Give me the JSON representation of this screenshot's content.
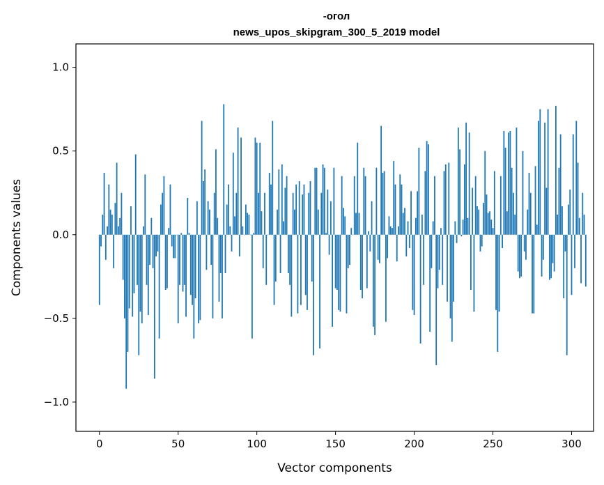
{
  "chart_data": {
    "type": "bar",
    "title_line1": "-огол",
    "title_line2": "news_upos_skipgram_300_5_2019 model",
    "xlabel": "Vector components",
    "ylabel": "Components values",
    "xlim": [
      -14.95,
      313.95
    ],
    "ylim": [
      -1.175,
      1.14
    ],
    "xticks": [
      0,
      50,
      100,
      150,
      200,
      250,
      300
    ],
    "xtick_labels": [
      "0",
      "50",
      "100",
      "150",
      "200",
      "250",
      "300"
    ],
    "yticks": [
      1.0,
      0.5,
      0.0,
      -0.5,
      -1.0
    ],
    "ytick_labels": [
      "1.0",
      "0.5",
      "0.0",
      "−0.5",
      "−1.0"
    ],
    "bar_color": "#1f77b4",
    "values": [
      -0.42,
      -0.07,
      0.12,
      0.37,
      -0.15,
      0.05,
      0.3,
      0.15,
      0.12,
      -0.2,
      0.19,
      0.43,
      0.05,
      0.1,
      0.25,
      -0.27,
      -0.5,
      -0.92,
      -0.7,
      -0.44,
      0.17,
      -0.49,
      -0.35,
      0.48,
      -0.3,
      -0.72,
      -0.46,
      -0.53,
      0.05,
      0.36,
      -0.3,
      -0.48,
      -0.18,
      0.1,
      -0.2,
      -0.86,
      -0.13,
      -0.1,
      -0.62,
      0.18,
      0.25,
      0.35,
      -0.33,
      -0.32,
      0.04,
      0.3,
      -0.07,
      -0.14,
      -0.14,
      0.0,
      -0.53,
      -0.3,
      0.01,
      -0.34,
      -0.3,
      -0.49,
      0.22,
      0.01,
      -0.36,
      -0.42,
      -0.62,
      -0.38,
      0.2,
      -0.53,
      -0.51,
      0.68,
      0.32,
      0.39,
      -0.21,
      0.2,
      0.15,
      -0.18,
      -0.5,
      0.25,
      0.51,
      0.1,
      -0.4,
      -0.23,
      -0.5,
      0.78,
      -0.23,
      0.18,
      0.3,
      0.05,
      -0.1,
      0.49,
      0.11,
      0.25,
      0.64,
      -0.13,
      0.58,
      0.05,
      0.0,
      0.18,
      0.13,
      0.12,
      0.0,
      -0.62,
      0.01,
      0.58,
      0.55,
      0.25,
      0.55,
      0.14,
      -0.2,
      0.25,
      -0.3,
      0.0,
      0.37,
      0.3,
      0.68,
      -0.42,
      -0.28,
      0.15,
      0.39,
      -0.23,
      0.42,
      0.08,
      0.28,
      0.35,
      -0.23,
      -0.3,
      -0.49,
      0.25,
      0.15,
      0.3,
      -0.47,
      0.32,
      -0.42,
      0.24,
      0.3,
      -0.36,
      -0.45,
      0.25,
      0.32,
      -0.28,
      -0.72,
      0.4,
      0.4,
      0.15,
      -0.68,
      0.25,
      0.42,
      0.4,
      0.01,
      0.27,
      -0.12,
      0.2,
      -0.55,
      0.4,
      -0.32,
      -0.33,
      -0.45,
      -0.46,
      0.35,
      0.16,
      0.11,
      -0.47,
      -0.2,
      -0.18,
      0.04,
      0.0,
      0.35,
      0.13,
      0.55,
      0.13,
      -0.33,
      -0.38,
      0.4,
      0.35,
      -0.32,
      0.02,
      -0.1,
      0.2,
      -0.55,
      -0.6,
      0.4,
      -0.15,
      -0.17,
      0.65,
      0.37,
      0.38,
      -0.52,
      -0.14,
      0.11,
      0.05,
      0.04,
      0.44,
      0.3,
      -0.16,
      0.05,
      0.36,
      0.3,
      0.13,
      0.16,
      -0.13,
      0.08,
      -0.08,
      0.26,
      -0.45,
      -0.48,
      0.1,
      0.26,
      0.52,
      -0.65,
      0.12,
      -0.3,
      0.38,
      0.56,
      0.54,
      -0.58,
      -0.2,
      0.08,
      0.35,
      -0.78,
      -0.32,
      -0.21,
      0.04,
      -0.3,
      0.38,
      0.42,
      -0.4,
      0.43,
      -0.5,
      -0.64,
      -0.4,
      0.08,
      -0.05,
      0.64,
      0.51,
      -0.01,
      0.09,
      0.42,
      0.67,
      0.1,
      0.61,
      -0.33,
      0.28,
      -0.46,
      0.35,
      0.17,
      0.15,
      -0.1,
      -0.07,
      0.19,
      0.5,
      0.24,
      0.13,
      0.14,
      0.09,
      0.04,
      0.38,
      -0.45,
      -0.7,
      -0.46,
      0.35,
      -0.08,
      0.62,
      0.52,
      0.14,
      0.61,
      0.62,
      0.4,
      0.25,
      0.12,
      0.64,
      -0.22,
      -0.26,
      -0.25,
      0.5,
      -0.1,
      -0.15,
      0.15,
      0.37,
      0.25,
      -0.47,
      -0.47,
      0.41,
      0.06,
      0.68,
      0.75,
      -0.25,
      -0.15,
      0.67,
      0.28,
      0.75,
      -0.27,
      -0.26,
      -0.17,
      -0.22,
      0.77,
      0.12,
      0.4,
      0.6,
      0.17,
      -0.38,
      -0.1,
      -0.72,
      0.18,
      0.27,
      -0.36,
      0.6,
      -0.2,
      0.68,
      0.43,
      0.1,
      -0.29,
      0.25,
      0.12,
      -0.31
    ]
  }
}
